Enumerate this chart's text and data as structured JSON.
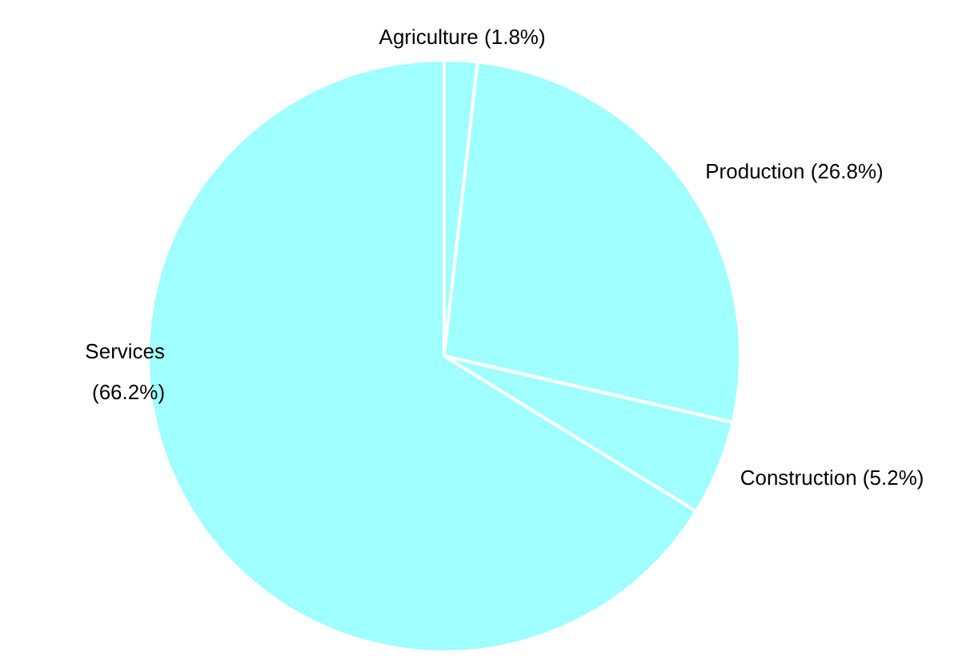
{
  "chart_data": {
    "type": "pie",
    "categories": [
      "Agriculture",
      "Production",
      "Construction",
      "Services"
    ],
    "values": [
      1.8,
      26.8,
      5.2,
      66.2
    ],
    "value_labels": [
      "(1.8%)",
      "(26.8%)",
      "(5.2%)",
      "(66.2%)"
    ],
    "colors": [
      "#a0ffff",
      "#a0ffff",
      "#a0ffff",
      "#a0ffff"
    ]
  }
}
